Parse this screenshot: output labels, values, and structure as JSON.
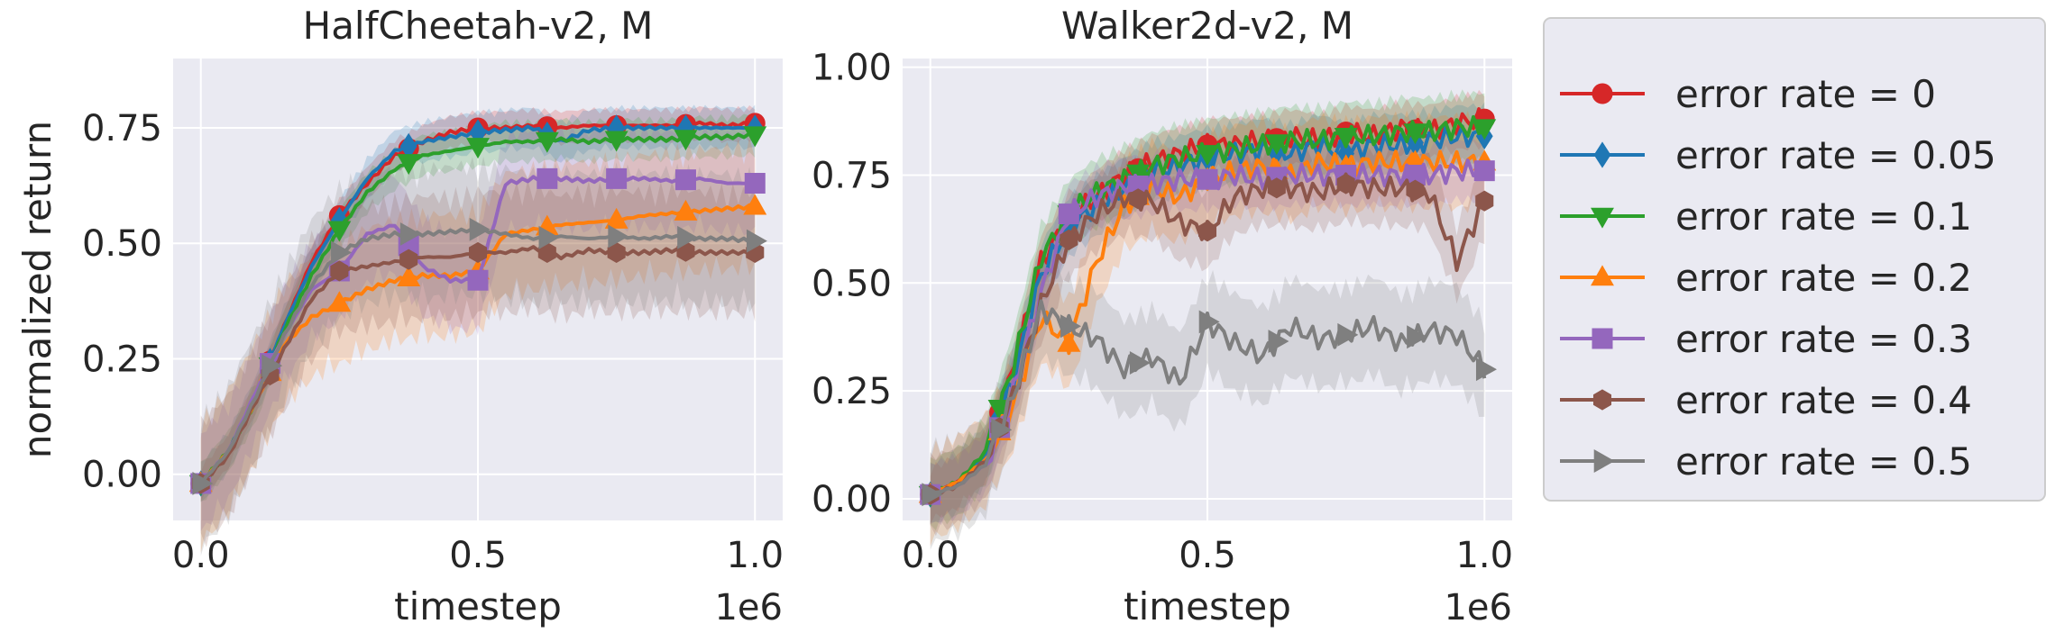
{
  "chart_data": [
    {
      "type": "line",
      "title": "HalfCheetah-v2, M",
      "xlabel": "timestep",
      "ylabel": "normalized return",
      "x_offset_label": "1e6",
      "xlim": [
        -0.05,
        1.05
      ],
      "ylim": [
        -0.1,
        0.9
      ],
      "xticks": [
        0.0,
        0.5,
        1.0
      ],
      "xtick_labels": [
        "0.0",
        "0.5",
        "1.0"
      ],
      "yticks": [
        0.0,
        0.25,
        0.5,
        0.75
      ],
      "ytick_labels": [
        "0.00",
        "0.25",
        "0.50",
        "0.75"
      ],
      "grid": true,
      "marker_x": [
        0.0,
        0.125,
        0.25,
        0.375,
        0.5,
        0.625,
        0.75,
        0.875,
        1.0
      ],
      "series": [
        {
          "name": "error rate = 0",
          "color": "#d62728",
          "marker": "circle",
          "x": [
            0.0,
            0.05,
            0.1,
            0.15,
            0.2,
            0.25,
            0.3,
            0.35,
            0.4,
            0.45,
            0.5,
            0.55,
            0.6,
            0.65,
            0.7,
            0.75,
            0.8,
            0.85,
            0.9,
            0.95,
            1.0
          ],
          "y": [
            -0.02,
            0.05,
            0.17,
            0.32,
            0.46,
            0.56,
            0.63,
            0.69,
            0.72,
            0.74,
            0.75,
            0.75,
            0.755,
            0.75,
            0.755,
            0.755,
            0.755,
            0.755,
            0.76,
            0.755,
            0.76
          ],
          "band": 0.04
        },
        {
          "name": "error rate = 0.05",
          "color": "#1f77b4",
          "marker": "diamond",
          "x": [
            0.0,
            0.05,
            0.1,
            0.15,
            0.2,
            0.25,
            0.3,
            0.35,
            0.4,
            0.45,
            0.5,
            0.55,
            0.6,
            0.65,
            0.7,
            0.75,
            0.8,
            0.85,
            0.9,
            0.95,
            1.0
          ],
          "y": [
            -0.02,
            0.05,
            0.17,
            0.32,
            0.45,
            0.55,
            0.64,
            0.7,
            0.72,
            0.73,
            0.74,
            0.745,
            0.75,
            0.72,
            0.745,
            0.75,
            0.75,
            0.75,
            0.75,
            0.75,
            0.75
          ],
          "band": 0.05
        },
        {
          "name": "error rate = 0.1",
          "color": "#2ca02c",
          "marker": "triangle-down",
          "x": [
            0.0,
            0.05,
            0.1,
            0.15,
            0.2,
            0.25,
            0.3,
            0.35,
            0.4,
            0.45,
            0.5,
            0.55,
            0.6,
            0.65,
            0.7,
            0.75,
            0.8,
            0.85,
            0.9,
            0.95,
            1.0
          ],
          "y": [
            -0.02,
            0.05,
            0.16,
            0.31,
            0.43,
            0.53,
            0.61,
            0.66,
            0.69,
            0.7,
            0.71,
            0.72,
            0.72,
            0.725,
            0.72,
            0.725,
            0.725,
            0.725,
            0.73,
            0.73,
            0.735
          ],
          "band": 0.05
        },
        {
          "name": "error rate = 0.2",
          "color": "#ff7f0e",
          "marker": "triangle-up",
          "x": [
            0.0,
            0.05,
            0.1,
            0.15,
            0.2,
            0.25,
            0.3,
            0.35,
            0.4,
            0.45,
            0.5,
            0.55,
            0.6,
            0.65,
            0.7,
            0.75,
            0.8,
            0.85,
            0.9,
            0.95,
            1.0
          ],
          "y": [
            -0.02,
            0.05,
            0.16,
            0.28,
            0.34,
            0.37,
            0.4,
            0.42,
            0.43,
            0.43,
            0.44,
            0.52,
            0.53,
            0.54,
            0.545,
            0.55,
            0.56,
            0.565,
            0.57,
            0.575,
            0.58
          ],
          "band": 0.15
        },
        {
          "name": "error rate = 0.3",
          "color": "#9467bd",
          "marker": "square",
          "x": [
            0.0,
            0.05,
            0.1,
            0.15,
            0.2,
            0.25,
            0.3,
            0.35,
            0.4,
            0.45,
            0.5,
            0.55,
            0.6,
            0.65,
            0.7,
            0.75,
            0.8,
            0.85,
            0.9,
            0.95,
            1.0
          ],
          "y": [
            -0.02,
            0.05,
            0.18,
            0.3,
            0.4,
            0.44,
            0.52,
            0.54,
            0.45,
            0.42,
            0.42,
            0.63,
            0.64,
            0.64,
            0.635,
            0.64,
            0.64,
            0.635,
            0.64,
            0.63,
            0.63
          ],
          "band": 0.12
        },
        {
          "name": "error rate = 0.4",
          "color": "#8c564b",
          "marker": "hexagon",
          "x": [
            0.0,
            0.05,
            0.1,
            0.15,
            0.2,
            0.25,
            0.3,
            0.35,
            0.4,
            0.45,
            0.5,
            0.55,
            0.6,
            0.65,
            0.7,
            0.75,
            0.8,
            0.85,
            0.9,
            0.95,
            1.0
          ],
          "y": [
            -0.02,
            0.04,
            0.16,
            0.27,
            0.38,
            0.44,
            0.45,
            0.46,
            0.47,
            0.47,
            0.48,
            0.48,
            0.49,
            0.47,
            0.485,
            0.48,
            0.48,
            0.485,
            0.48,
            0.48,
            0.48
          ],
          "band": 0.15
        },
        {
          "name": "error rate = 0.5",
          "color": "#7f7f7f",
          "marker": "triangle-right",
          "x": [
            0.0,
            0.05,
            0.1,
            0.15,
            0.2,
            0.25,
            0.3,
            0.35,
            0.4,
            0.45,
            0.5,
            0.55,
            0.6,
            0.65,
            0.7,
            0.75,
            0.8,
            0.85,
            0.9,
            0.95,
            1.0
          ],
          "y": [
            -0.02,
            0.05,
            0.17,
            0.3,
            0.41,
            0.48,
            0.51,
            0.52,
            0.52,
            0.525,
            0.53,
            0.52,
            0.51,
            0.515,
            0.51,
            0.515,
            0.51,
            0.515,
            0.51,
            0.51,
            0.505
          ],
          "band": 0.16
        }
      ]
    },
    {
      "type": "line",
      "title": "Walker2d-v2, M",
      "xlabel": "timestep",
      "ylabel": "",
      "x_offset_label": "1e6",
      "xlim": [
        -0.05,
        1.05
      ],
      "ylim": [
        -0.05,
        1.02
      ],
      "xticks": [
        0.0,
        0.5,
        1.0
      ],
      "xtick_labels": [
        "0.0",
        "0.5",
        "1.0"
      ],
      "yticks": [
        0.0,
        0.25,
        0.5,
        0.75,
        1.0
      ],
      "ytick_labels": [
        "0.00",
        "0.25",
        "0.50",
        "0.75",
        "1.00"
      ],
      "grid": true,
      "marker_x": [
        0.0,
        0.125,
        0.25,
        0.375,
        0.5,
        0.625,
        0.75,
        0.875,
        1.0
      ],
      "series": [
        {
          "name": "error rate = 0",
          "color": "#d62728",
          "marker": "circle",
          "x": [
            0.0,
            0.05,
            0.1,
            0.15,
            0.2,
            0.25,
            0.3,
            0.35,
            0.4,
            0.45,
            0.5,
            0.55,
            0.6,
            0.65,
            0.7,
            0.75,
            0.8,
            0.85,
            0.9,
            0.95,
            1.0
          ],
          "y": [
            0.01,
            0.04,
            0.1,
            0.3,
            0.55,
            0.65,
            0.7,
            0.75,
            0.78,
            0.8,
            0.82,
            0.82,
            0.83,
            0.84,
            0.83,
            0.85,
            0.84,
            0.86,
            0.85,
            0.87,
            0.88
          ],
          "band": 0.07
        },
        {
          "name": "error rate = 0.05",
          "color": "#1f77b4",
          "marker": "diamond",
          "x": [
            0.0,
            0.05,
            0.1,
            0.15,
            0.2,
            0.25,
            0.3,
            0.35,
            0.4,
            0.45,
            0.5,
            0.55,
            0.6,
            0.65,
            0.7,
            0.75,
            0.8,
            0.85,
            0.9,
            0.95,
            1.0
          ],
          "y": [
            0.01,
            0.04,
            0.1,
            0.28,
            0.52,
            0.63,
            0.68,
            0.72,
            0.76,
            0.77,
            0.79,
            0.8,
            0.81,
            0.8,
            0.82,
            0.8,
            0.82,
            0.82,
            0.83,
            0.84,
            0.84
          ],
          "band": 0.08
        },
        {
          "name": "error rate = 0.1",
          "color": "#2ca02c",
          "marker": "triangle-down",
          "x": [
            0.0,
            0.05,
            0.1,
            0.15,
            0.2,
            0.25,
            0.3,
            0.35,
            0.4,
            0.45,
            0.5,
            0.55,
            0.6,
            0.65,
            0.7,
            0.75,
            0.8,
            0.85,
            0.9,
            0.95,
            1.0
          ],
          "y": [
            0.01,
            0.04,
            0.11,
            0.31,
            0.56,
            0.66,
            0.71,
            0.74,
            0.77,
            0.79,
            0.8,
            0.81,
            0.82,
            0.83,
            0.83,
            0.84,
            0.84,
            0.85,
            0.85,
            0.86,
            0.86
          ],
          "band": 0.09
        },
        {
          "name": "error rate = 0.2",
          "color": "#ff7f0e",
          "marker": "triangle-up",
          "x": [
            0.0,
            0.05,
            0.1,
            0.15,
            0.2,
            0.25,
            0.3,
            0.35,
            0.4,
            0.45,
            0.5,
            0.55,
            0.6,
            0.65,
            0.7,
            0.75,
            0.8,
            0.85,
            0.9,
            0.95,
            1.0
          ],
          "y": [
            0.01,
            0.04,
            0.09,
            0.22,
            0.42,
            0.36,
            0.55,
            0.68,
            0.72,
            0.7,
            0.74,
            0.76,
            0.77,
            0.75,
            0.78,
            0.77,
            0.78,
            0.78,
            0.78,
            0.78,
            0.78
          ],
          "band": 0.12
        },
        {
          "name": "error rate = 0.3",
          "color": "#9467bd",
          "marker": "square",
          "x": [
            0.0,
            0.05,
            0.1,
            0.15,
            0.2,
            0.25,
            0.3,
            0.35,
            0.4,
            0.45,
            0.5,
            0.55,
            0.6,
            0.65,
            0.7,
            0.75,
            0.8,
            0.85,
            0.9,
            0.95,
            1.0
          ],
          "y": [
            0.01,
            0.03,
            0.08,
            0.25,
            0.48,
            0.66,
            0.7,
            0.72,
            0.73,
            0.74,
            0.74,
            0.75,
            0.74,
            0.75,
            0.75,
            0.75,
            0.75,
            0.75,
            0.75,
            0.76,
            0.76
          ],
          "band": 0.08
        },
        {
          "name": "error rate = 0.4",
          "color": "#8c564b",
          "marker": "hexagon",
          "x": [
            0.0,
            0.05,
            0.1,
            0.15,
            0.2,
            0.25,
            0.3,
            0.35,
            0.4,
            0.45,
            0.5,
            0.55,
            0.6,
            0.65,
            0.7,
            0.75,
            0.8,
            0.85,
            0.9,
            0.95,
            1.0
          ],
          "y": [
            0.01,
            0.03,
            0.09,
            0.24,
            0.45,
            0.6,
            0.66,
            0.7,
            0.69,
            0.64,
            0.62,
            0.7,
            0.72,
            0.72,
            0.71,
            0.73,
            0.72,
            0.72,
            0.71,
            0.55,
            0.69
          ],
          "band": 0.1
        },
        {
          "name": "error rate = 0.5",
          "color": "#7f7f7f",
          "marker": "triangle-right",
          "x": [
            0.0,
            0.05,
            0.1,
            0.15,
            0.2,
            0.25,
            0.3,
            0.35,
            0.4,
            0.45,
            0.5,
            0.55,
            0.6,
            0.65,
            0.7,
            0.75,
            0.8,
            0.85,
            0.9,
            0.95,
            1.0
          ],
          "y": [
            0.01,
            0.03,
            0.08,
            0.24,
            0.44,
            0.4,
            0.37,
            0.3,
            0.33,
            0.27,
            0.41,
            0.36,
            0.33,
            0.4,
            0.37,
            0.38,
            0.4,
            0.36,
            0.39,
            0.38,
            0.3
          ],
          "band": 0.13
        }
      ]
    }
  ],
  "legend": {
    "placement": "right",
    "entries": [
      "error rate = 0",
      "error rate = 0.05",
      "error rate = 0.1",
      "error rate = 0.2",
      "error rate = 0.3",
      "error rate = 0.4",
      "error rate = 0.5"
    ]
  }
}
